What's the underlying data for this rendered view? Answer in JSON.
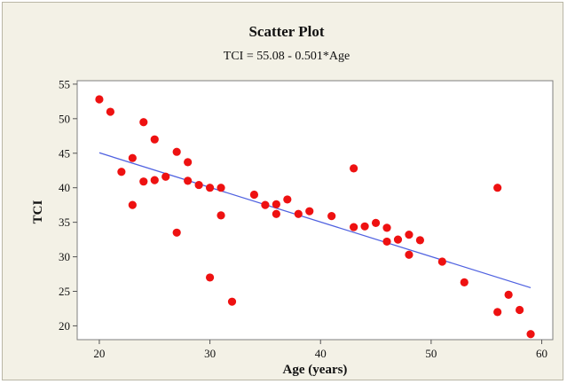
{
  "chart_data": {
    "type": "scatter",
    "title": "Scatter Plot",
    "subtitle": "TCI =  55.08 - 0.501*Age",
    "xlabel": "Age (years)",
    "ylabel": "TCI",
    "xlim": [
      18,
      61
    ],
    "ylim": [
      18,
      55.5
    ],
    "x_ticks": [
      20,
      30,
      40,
      50,
      60
    ],
    "y_ticks": [
      20,
      25,
      30,
      35,
      40,
      45,
      50,
      55
    ],
    "grid": false,
    "colors": {
      "points": "#ee1111",
      "fit_line": "#4f61e0",
      "panel_background": "#f3f1e6",
      "plot_background": "#ffffff"
    },
    "fit_line": {
      "intercept": 55.08,
      "slope": -0.501,
      "x_start": 20,
      "x_end": 59
    },
    "points": [
      {
        "x": 20,
        "y": 52.8
      },
      {
        "x": 21,
        "y": 51.0
      },
      {
        "x": 22,
        "y": 42.3
      },
      {
        "x": 23,
        "y": 44.3
      },
      {
        "x": 23,
        "y": 37.5
      },
      {
        "x": 24,
        "y": 49.5
      },
      {
        "x": 24,
        "y": 40.9
      },
      {
        "x": 25,
        "y": 47.0
      },
      {
        "x": 25,
        "y": 41.1
      },
      {
        "x": 26,
        "y": 41.6
      },
      {
        "x": 27,
        "y": 45.2
      },
      {
        "x": 27,
        "y": 33.5
      },
      {
        "x": 28,
        "y": 43.7
      },
      {
        "x": 28,
        "y": 41.0
      },
      {
        "x": 29,
        "y": 40.4
      },
      {
        "x": 30,
        "y": 40.0
      },
      {
        "x": 30,
        "y": 27.0
      },
      {
        "x": 31,
        "y": 40.0
      },
      {
        "x": 31,
        "y": 36.0
      },
      {
        "x": 32,
        "y": 23.5
      },
      {
        "x": 34,
        "y": 39.0
      },
      {
        "x": 35,
        "y": 37.5
      },
      {
        "x": 36,
        "y": 37.6
      },
      {
        "x": 36,
        "y": 36.2
      },
      {
        "x": 37,
        "y": 38.3
      },
      {
        "x": 38,
        "y": 36.2
      },
      {
        "x": 39,
        "y": 36.6
      },
      {
        "x": 41,
        "y": 35.9
      },
      {
        "x": 43,
        "y": 42.8
      },
      {
        "x": 43,
        "y": 34.3
      },
      {
        "x": 44,
        "y": 34.4
      },
      {
        "x": 45,
        "y": 34.9
      },
      {
        "x": 46,
        "y": 34.2
      },
      {
        "x": 46,
        "y": 32.2
      },
      {
        "x": 47,
        "y": 32.5
      },
      {
        "x": 48,
        "y": 33.2
      },
      {
        "x": 48,
        "y": 30.3
      },
      {
        "x": 49,
        "y": 32.4
      },
      {
        "x": 51,
        "y": 29.3
      },
      {
        "x": 53,
        "y": 26.3
      },
      {
        "x": 56,
        "y": 40.0
      },
      {
        "x": 56,
        "y": 22.0
      },
      {
        "x": 57,
        "y": 24.5
      },
      {
        "x": 58,
        "y": 22.3
      },
      {
        "x": 59,
        "y": 18.8
      }
    ]
  }
}
